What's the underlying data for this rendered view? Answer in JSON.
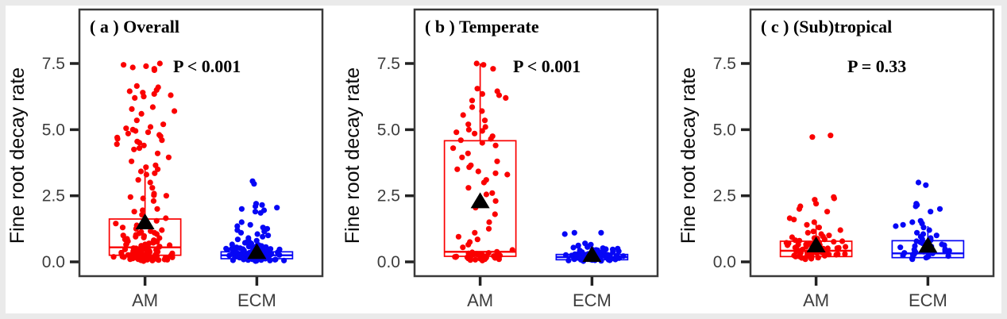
{
  "figure": {
    "y_axis_label": "Fine root decay rate",
    "y_ticks": [
      "7.5",
      "5.0",
      "2.5",
      "0.0"
    ],
    "x_categories": [
      "AM",
      "ECM"
    ],
    "colors": {
      "am_points": "#fa0000",
      "ecm_points": "#0606f5",
      "mean_marker": "#000000",
      "tick_label": "#3d3d3d",
      "panel_border": "#3a3a3a"
    }
  },
  "chart_data": [
    {
      "type": "boxplot-jitter",
      "panel_label": "( a ) Overall",
      "p_value": "P < 0.001",
      "ylabel": "Fine root decay rate",
      "xlabel": "",
      "yticks": [
        0.0,
        2.5,
        5.0,
        7.5
      ],
      "ylim": [
        -0.55,
        9.55
      ],
      "categories": [
        "AM",
        "ECM"
      ],
      "groups": [
        {
          "name": "AM",
          "color": "#fa0000",
          "box": {
            "whisker_low": 0.03,
            "q1": 0.25,
            "median": 0.55,
            "q3": 1.62,
            "whisker_high": 3.65
          },
          "mean": 1.5,
          "points": [
            0.03,
            0.05,
            0.06,
            0.07,
            0.08,
            0.08,
            0.09,
            0.1,
            0.1,
            0.11,
            0.12,
            0.12,
            0.13,
            0.14,
            0.14,
            0.15,
            0.15,
            0.16,
            0.17,
            0.17,
            0.18,
            0.18,
            0.19,
            0.2,
            0.2,
            0.21,
            0.22,
            0.22,
            0.23,
            0.24,
            0.24,
            0.25,
            0.26,
            0.26,
            0.27,
            0.28,
            0.28,
            0.29,
            0.3,
            0.3,
            0.31,
            0.32,
            0.33,
            0.34,
            0.35,
            0.36,
            0.37,
            0.38,
            0.39,
            0.4,
            0.41,
            0.42,
            0.43,
            0.44,
            0.45,
            0.46,
            0.47,
            0.48,
            0.5,
            0.51,
            0.52,
            0.54,
            0.55,
            0.56,
            0.58,
            0.6,
            0.61,
            0.63,
            0.65,
            0.66,
            0.68,
            0.7,
            0.72,
            0.74,
            0.76,
            0.78,
            0.8,
            0.82,
            0.85,
            0.87,
            0.9,
            0.92,
            0.95,
            0.98,
            1.0,
            1.02,
            1.05,
            1.08,
            1.1,
            1.13,
            1.16,
            1.2,
            1.25,
            1.3,
            1.38,
            1.45,
            1.55,
            1.65,
            1.78,
            1.9,
            1.95,
            2.0,
            2.3,
            2.4,
            2.45,
            2.5,
            2.52,
            2.58,
            2.8,
            3.0,
            3.1,
            3.3,
            3.35,
            3.42,
            3.5,
            3.58,
            3.65,
            3.8,
            3.95,
            4.1,
            4.25,
            4.3,
            4.4,
            4.45,
            4.5,
            4.55,
            4.6,
            4.65,
            4.7,
            4.75,
            4.8,
            4.85,
            4.9,
            4.95,
            5.0,
            5.05,
            5.1,
            5.2,
            5.35,
            5.6,
            5.7,
            5.78,
            5.85,
            6.2,
            6.25,
            6.3,
            6.35,
            6.4,
            6.45,
            6.5,
            6.6,
            6.65,
            7.25,
            7.3,
            7.35,
            7.4,
            7.45,
            7.5
          ]
        },
        {
          "name": "ECM",
          "color": "#0606f5",
          "box": {
            "whisker_low": 0.03,
            "q1": 0.12,
            "median": 0.25,
            "q3": 0.38,
            "whisker_high": 0.75
          },
          "mean": 0.38,
          "points": [
            0.03,
            0.04,
            0.05,
            0.05,
            0.06,
            0.07,
            0.07,
            0.08,
            0.08,
            0.09,
            0.09,
            0.1,
            0.1,
            0.11,
            0.11,
            0.12,
            0.12,
            0.13,
            0.13,
            0.14,
            0.14,
            0.15,
            0.15,
            0.15,
            0.16,
            0.16,
            0.17,
            0.17,
            0.18,
            0.18,
            0.19,
            0.19,
            0.2,
            0.2,
            0.21,
            0.21,
            0.22,
            0.22,
            0.23,
            0.23,
            0.24,
            0.24,
            0.25,
            0.25,
            0.26,
            0.26,
            0.27,
            0.27,
            0.28,
            0.29,
            0.29,
            0.3,
            0.3,
            0.31,
            0.31,
            0.32,
            0.32,
            0.33,
            0.33,
            0.34,
            0.35,
            0.35,
            0.36,
            0.36,
            0.37,
            0.38,
            0.38,
            0.39,
            0.4,
            0.4,
            0.41,
            0.42,
            0.42,
            0.43,
            0.44,
            0.45,
            0.45,
            0.46,
            0.47,
            0.48,
            0.49,
            0.5,
            0.5,
            0.51,
            0.52,
            0.53,
            0.55,
            0.55,
            0.56,
            0.58,
            0.6,
            0.6,
            0.62,
            0.64,
            0.66,
            0.68,
            0.7,
            0.72,
            0.75,
            0.78,
            0.8,
            0.85,
            0.9,
            0.95,
            1.0,
            1.05,
            1.1,
            1.15,
            1.2,
            1.25,
            1.3,
            1.35,
            1.4,
            1.5,
            1.85,
            1.9,
            1.95,
            2.0,
            2.05,
            2.1,
            2.15,
            2.2,
            2.95,
            3.05
          ]
        }
      ]
    },
    {
      "type": "boxplot-jitter",
      "panel_label": "( b ) Temperate",
      "p_value": "P < 0.001",
      "ylabel": "Fine root decay rate",
      "xlabel": "",
      "yticks": [
        0.0,
        2.5,
        5.0,
        7.5
      ],
      "ylim": [
        -0.55,
        9.55
      ],
      "categories": [
        "AM",
        "ECM"
      ],
      "groups": [
        {
          "name": "AM",
          "color": "#fa0000",
          "box": {
            "whisker_low": 0.05,
            "q1": 0.21,
            "median": 0.38,
            "q3": 4.58,
            "whisker_high": 7.5
          },
          "mean": 2.3,
          "points": [
            0.05,
            0.07,
            0.08,
            0.1,
            0.1,
            0.12,
            0.13,
            0.14,
            0.15,
            0.16,
            0.17,
            0.18,
            0.19,
            0.2,
            0.2,
            0.21,
            0.22,
            0.23,
            0.24,
            0.25,
            0.26,
            0.27,
            0.28,
            0.29,
            0.3,
            0.31,
            0.32,
            0.34,
            0.36,
            0.38,
            0.45,
            0.55,
            0.65,
            0.75,
            0.85,
            0.95,
            1.1,
            1.25,
            1.5,
            1.8,
            2.05,
            2.3,
            2.55,
            2.6,
            2.8,
            3.0,
            3.1,
            3.3,
            3.35,
            3.42,
            3.5,
            3.58,
            3.65,
            3.8,
            3.95,
            4.1,
            4.3,
            4.4,
            4.5,
            4.6,
            4.65,
            4.75,
            4.85,
            4.9,
            4.95,
            5.0,
            5.1,
            5.2,
            5.35,
            5.55,
            5.7,
            5.85,
            6.1,
            6.2,
            6.3,
            6.35,
            6.45,
            6.55,
            7.3,
            7.45,
            7.5
          ]
        },
        {
          "name": "ECM",
          "color": "#0606f5",
          "box": {
            "whisker_low": 0.03,
            "q1": 0.08,
            "median": 0.18,
            "q3": 0.28,
            "whisker_high": 0.58
          },
          "mean": 0.27,
          "points": [
            0.03,
            0.04,
            0.05,
            0.06,
            0.06,
            0.07,
            0.08,
            0.08,
            0.09,
            0.09,
            0.1,
            0.1,
            0.11,
            0.11,
            0.12,
            0.12,
            0.13,
            0.13,
            0.14,
            0.14,
            0.15,
            0.15,
            0.16,
            0.16,
            0.17,
            0.17,
            0.18,
            0.18,
            0.19,
            0.19,
            0.2,
            0.2,
            0.21,
            0.21,
            0.22,
            0.22,
            0.23,
            0.23,
            0.24,
            0.24,
            0.25,
            0.25,
            0.26,
            0.26,
            0.27,
            0.27,
            0.28,
            0.28,
            0.29,
            0.3,
            0.3,
            0.31,
            0.32,
            0.33,
            0.34,
            0.35,
            0.36,
            0.37,
            0.38,
            0.39,
            0.4,
            0.41,
            0.42,
            0.43,
            0.44,
            0.45,
            0.46,
            0.47,
            0.48,
            0.5,
            0.52,
            0.54,
            0.56,
            0.58,
            0.6,
            0.62,
            0.65,
            0.7,
            1.05,
            1.1,
            1.1
          ]
        }
      ]
    },
    {
      "type": "boxplot-jitter",
      "panel_label": "( c ) (Sub)tropical",
      "p_value": "P = 0.33",
      "ylabel": "Fine root decay rate",
      "xlabel": "",
      "yticks": [
        0.0,
        2.5,
        5.0,
        7.5
      ],
      "ylim": [
        -0.55,
        9.55
      ],
      "categories": [
        "AM",
        "ECM"
      ],
      "groups": [
        {
          "name": "AM",
          "color": "#fa0000",
          "box": {
            "whisker_low": 0.08,
            "q1": 0.2,
            "median": 0.42,
            "q3": 0.78,
            "whisker_high": 1.55
          },
          "mean": 0.63,
          "points": [
            0.1,
            0.12,
            0.14,
            0.15,
            0.16,
            0.18,
            0.19,
            0.2,
            0.21,
            0.22,
            0.23,
            0.24,
            0.25,
            0.26,
            0.27,
            0.28,
            0.29,
            0.3,
            0.3,
            0.31,
            0.32,
            0.33,
            0.33,
            0.34,
            0.35,
            0.36,
            0.37,
            0.37,
            0.38,
            0.39,
            0.4,
            0.41,
            0.41,
            0.42,
            0.43,
            0.44,
            0.45,
            0.46,
            0.47,
            0.47,
            0.48,
            0.49,
            0.5,
            0.51,
            0.52,
            0.53,
            0.54,
            0.55,
            0.56,
            0.57,
            0.58,
            0.6,
            0.61,
            0.62,
            0.63,
            0.64,
            0.65,
            0.66,
            0.68,
            0.69,
            0.7,
            0.72,
            0.74,
            0.75,
            0.76,
            0.78,
            0.8,
            0.82,
            0.85,
            0.88,
            0.9,
            0.93,
            0.96,
            1.0,
            1.05,
            1.1,
            1.15,
            1.2,
            1.3,
            1.4,
            1.5,
            1.6,
            1.65,
            1.9,
            2.0,
            2.1,
            2.2,
            2.35,
            2.4,
            2.45,
            4.72,
            4.78
          ]
        },
        {
          "name": "ECM",
          "color": "#0606f5",
          "box": {
            "whisker_low": 0.08,
            "q1": 0.16,
            "median": 0.32,
            "q3": 0.8,
            "whisker_high": 1.35
          },
          "mean": 0.62,
          "points": [
            0.1,
            0.13,
            0.16,
            0.18,
            0.2,
            0.22,
            0.24,
            0.26,
            0.28,
            0.3,
            0.32,
            0.34,
            0.36,
            0.38,
            0.4,
            0.42,
            0.44,
            0.46,
            0.48,
            0.5,
            0.52,
            0.55,
            0.58,
            0.6,
            0.63,
            0.66,
            0.7,
            0.74,
            0.78,
            0.82,
            0.86,
            0.9,
            0.95,
            1.0,
            1.05,
            1.1,
            1.2,
            1.3,
            1.35,
            1.4,
            1.45,
            1.5,
            1.55,
            1.9,
            2.0,
            2.1,
            2.15,
            2.2,
            2.9,
            3.0
          ]
        }
      ]
    }
  ]
}
